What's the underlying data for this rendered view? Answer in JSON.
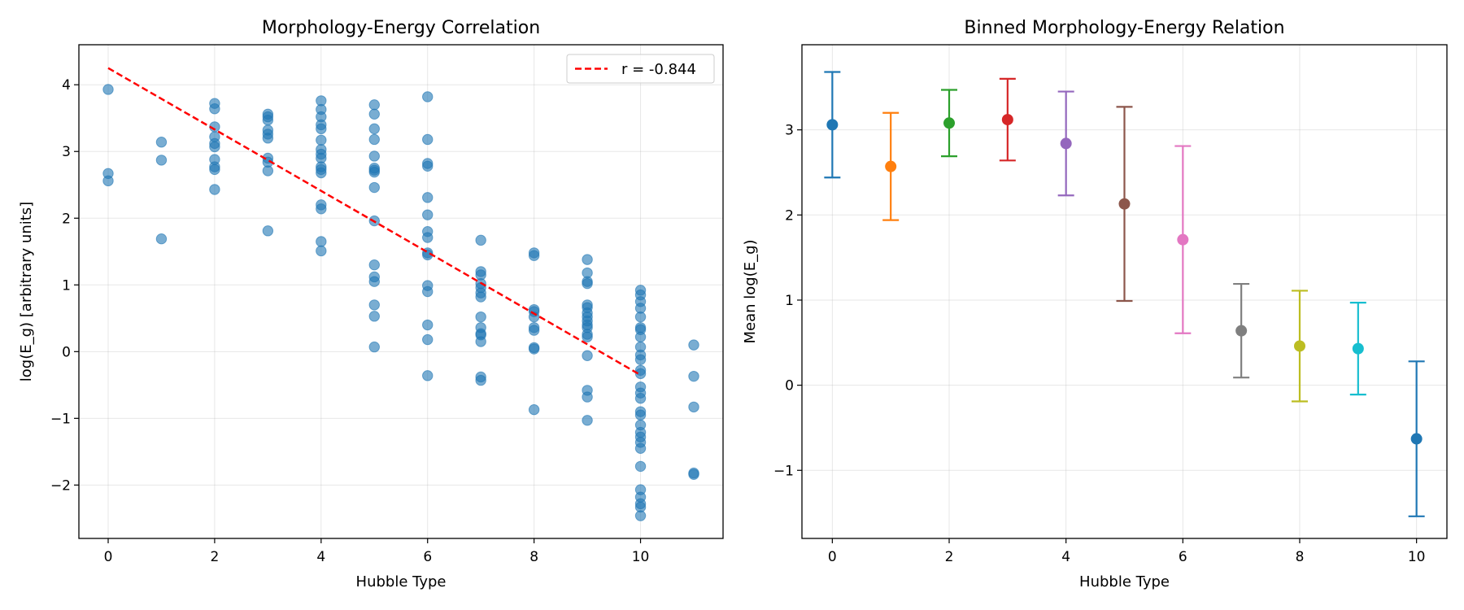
{
  "chart_data": [
    {
      "type": "scatter",
      "title": "Morphology-Energy Correlation",
      "xlabel": "Hubble Type",
      "ylabel": "log(E_g) [arbitrary units]",
      "xlim": [
        -0.55,
        11.55
      ],
      "ylim": [
        -2.8,
        4.6
      ],
      "xticks": [
        0,
        2,
        4,
        6,
        8,
        10
      ],
      "yticks": [
        -2,
        -1,
        0,
        1,
        2,
        3,
        4
      ],
      "xtick_labels": [
        "0",
        "2",
        "4",
        "6",
        "8",
        "10"
      ],
      "ytick_labels": [
        "−2",
        "−1",
        "0",
        "1",
        "2",
        "3",
        "4"
      ],
      "grid": true,
      "legend_position": "top-right",
      "point_color": "#1f77b4",
      "points": [
        {
          "x": 0,
          "y": 3.93
        },
        {
          "x": 0,
          "y": 2.67
        },
        {
          "x": 0,
          "y": 2.56
        },
        {
          "x": 1,
          "y": 3.14
        },
        {
          "x": 1,
          "y": 2.87
        },
        {
          "x": 1,
          "y": 1.69
        },
        {
          "x": 2,
          "y": 3.72
        },
        {
          "x": 2,
          "y": 3.64
        },
        {
          "x": 2,
          "y": 3.37
        },
        {
          "x": 2,
          "y": 3.22
        },
        {
          "x": 2,
          "y": 3.12
        },
        {
          "x": 2,
          "y": 3.07
        },
        {
          "x": 2,
          "y": 2.88
        },
        {
          "x": 2,
          "y": 2.77
        },
        {
          "x": 2,
          "y": 2.73
        },
        {
          "x": 2,
          "y": 2.43
        },
        {
          "x": 3,
          "y": 3.56
        },
        {
          "x": 3,
          "y": 3.52
        },
        {
          "x": 3,
          "y": 3.47
        },
        {
          "x": 3,
          "y": 3.32
        },
        {
          "x": 3,
          "y": 3.26
        },
        {
          "x": 3,
          "y": 3.2
        },
        {
          "x": 3,
          "y": 2.9
        },
        {
          "x": 3,
          "y": 2.84
        },
        {
          "x": 3,
          "y": 2.71
        },
        {
          "x": 3,
          "y": 1.81
        },
        {
          "x": 4,
          "y": 3.76
        },
        {
          "x": 4,
          "y": 3.63
        },
        {
          "x": 4,
          "y": 3.52
        },
        {
          "x": 4,
          "y": 3.4
        },
        {
          "x": 4,
          "y": 3.34
        },
        {
          "x": 4,
          "y": 3.17
        },
        {
          "x": 4,
          "y": 3.03
        },
        {
          "x": 4,
          "y": 2.96
        },
        {
          "x": 4,
          "y": 2.9
        },
        {
          "x": 4,
          "y": 2.77
        },
        {
          "x": 4,
          "y": 2.73
        },
        {
          "x": 4,
          "y": 2.68
        },
        {
          "x": 4,
          "y": 2.2
        },
        {
          "x": 4,
          "y": 2.14
        },
        {
          "x": 4,
          "y": 1.65
        },
        {
          "x": 4,
          "y": 1.51
        },
        {
          "x": 5,
          "y": 3.7
        },
        {
          "x": 5,
          "y": 3.56
        },
        {
          "x": 5,
          "y": 3.34
        },
        {
          "x": 5,
          "y": 3.18
        },
        {
          "x": 5,
          "y": 2.93
        },
        {
          "x": 5,
          "y": 2.75
        },
        {
          "x": 5,
          "y": 2.72
        },
        {
          "x": 5,
          "y": 2.69
        },
        {
          "x": 5,
          "y": 2.46
        },
        {
          "x": 5,
          "y": 1.96
        },
        {
          "x": 5,
          "y": 1.3
        },
        {
          "x": 5,
          "y": 1.12
        },
        {
          "x": 5,
          "y": 1.05
        },
        {
          "x": 5,
          "y": 0.7
        },
        {
          "x": 5,
          "y": 0.53
        },
        {
          "x": 5,
          "y": 0.07
        },
        {
          "x": 6,
          "y": 3.82
        },
        {
          "x": 6,
          "y": 3.18
        },
        {
          "x": 6,
          "y": 2.82
        },
        {
          "x": 6,
          "y": 2.78
        },
        {
          "x": 6,
          "y": 2.31
        },
        {
          "x": 6,
          "y": 2.05
        },
        {
          "x": 6,
          "y": 1.8
        },
        {
          "x": 6,
          "y": 1.71
        },
        {
          "x": 6,
          "y": 1.48
        },
        {
          "x": 6,
          "y": 1.45
        },
        {
          "x": 6,
          "y": 0.99
        },
        {
          "x": 6,
          "y": 0.9
        },
        {
          "x": 6,
          "y": 0.4
        },
        {
          "x": 6,
          "y": 0.18
        },
        {
          "x": 6,
          "y": -0.36
        },
        {
          "x": 7,
          "y": 1.67
        },
        {
          "x": 7,
          "y": 1.2
        },
        {
          "x": 7,
          "y": 1.15
        },
        {
          "x": 7,
          "y": 1.02
        },
        {
          "x": 7,
          "y": 0.96
        },
        {
          "x": 7,
          "y": 0.88
        },
        {
          "x": 7,
          "y": 0.82
        },
        {
          "x": 7,
          "y": 0.52
        },
        {
          "x": 7,
          "y": 0.36
        },
        {
          "x": 7,
          "y": 0.27
        },
        {
          "x": 7,
          "y": 0.25
        },
        {
          "x": 7,
          "y": 0.15
        },
        {
          "x": 7,
          "y": -0.38
        },
        {
          "x": 7,
          "y": -0.43
        },
        {
          "x": 8,
          "y": 1.48
        },
        {
          "x": 8,
          "y": 1.44
        },
        {
          "x": 8,
          "y": 0.63
        },
        {
          "x": 8,
          "y": 0.6
        },
        {
          "x": 8,
          "y": 0.52
        },
        {
          "x": 8,
          "y": 0.36
        },
        {
          "x": 8,
          "y": 0.32
        },
        {
          "x": 8,
          "y": 0.06
        },
        {
          "x": 8,
          "y": 0.04
        },
        {
          "x": 8,
          "y": -0.87
        },
        {
          "x": 9,
          "y": 1.38
        },
        {
          "x": 9,
          "y": 1.18
        },
        {
          "x": 9,
          "y": 1.05
        },
        {
          "x": 9,
          "y": 1.02
        },
        {
          "x": 9,
          "y": 0.7
        },
        {
          "x": 9,
          "y": 0.66
        },
        {
          "x": 9,
          "y": 0.58
        },
        {
          "x": 9,
          "y": 0.52
        },
        {
          "x": 9,
          "y": 0.46
        },
        {
          "x": 9,
          "y": 0.4
        },
        {
          "x": 9,
          "y": 0.36
        },
        {
          "x": 9,
          "y": 0.26
        },
        {
          "x": 9,
          "y": 0.22
        },
        {
          "x": 9,
          "y": -0.06
        },
        {
          "x": 9,
          "y": -0.58
        },
        {
          "x": 9,
          "y": -0.68
        },
        {
          "x": 9,
          "y": -1.03
        },
        {
          "x": 10,
          "y": 0.92
        },
        {
          "x": 10,
          "y": 0.85
        },
        {
          "x": 10,
          "y": 0.75
        },
        {
          "x": 10,
          "y": 0.65
        },
        {
          "x": 10,
          "y": 0.52
        },
        {
          "x": 10,
          "y": 0.36
        },
        {
          "x": 10,
          "y": 0.33
        },
        {
          "x": 10,
          "y": 0.22
        },
        {
          "x": 10,
          "y": 0.07
        },
        {
          "x": 10,
          "y": -0.05
        },
        {
          "x": 10,
          "y": -0.12
        },
        {
          "x": 10,
          "y": -0.28
        },
        {
          "x": 10,
          "y": -0.33
        },
        {
          "x": 10,
          "y": -0.53
        },
        {
          "x": 10,
          "y": -0.62
        },
        {
          "x": 10,
          "y": -0.7
        },
        {
          "x": 10,
          "y": -0.9
        },
        {
          "x": 10,
          "y": -0.95
        },
        {
          "x": 10,
          "y": -1.1
        },
        {
          "x": 10,
          "y": -1.21
        },
        {
          "x": 10,
          "y": -1.28
        },
        {
          "x": 10,
          "y": -1.36
        },
        {
          "x": 10,
          "y": -1.45
        },
        {
          "x": 10,
          "y": -1.72
        },
        {
          "x": 10,
          "y": -2.07
        },
        {
          "x": 10,
          "y": -2.18
        },
        {
          "x": 10,
          "y": -2.28
        },
        {
          "x": 10,
          "y": -2.33
        },
        {
          "x": 10,
          "y": -2.46
        },
        {
          "x": 11,
          "y": 0.1
        },
        {
          "x": 11,
          "y": -0.37
        },
        {
          "x": 11,
          "y": -0.83
        },
        {
          "x": 11,
          "y": -1.82
        },
        {
          "x": 11,
          "y": -1.84
        }
      ],
      "fit_line": {
        "label": "r = -0.844",
        "color": "#ff0000",
        "style": "dashed",
        "x": [
          0,
          10
        ],
        "y": [
          4.25,
          -0.35
        ]
      }
    },
    {
      "type": "errorbar",
      "title": "Binned Morphology-Energy Relation",
      "xlabel": "Hubble Type",
      "ylabel": "Mean log(E_g)",
      "xlim": [
        -0.52,
        10.52
      ],
      "ylim": [
        -1.8,
        4.0
      ],
      "xticks": [
        0,
        2,
        4,
        6,
        8,
        10
      ],
      "yticks": [
        -1,
        0,
        1,
        2,
        3
      ],
      "xtick_labels": [
        "0",
        "2",
        "4",
        "6",
        "8",
        "10"
      ],
      "ytick_labels": [
        "−1",
        "0",
        "1",
        "2",
        "3"
      ],
      "grid": true,
      "points": [
        {
          "x": 0,
          "mean": 3.06,
          "err": 0.62,
          "color": "#1f77b4"
        },
        {
          "x": 1,
          "mean": 2.57,
          "err": 0.63,
          "color": "#ff7f0e"
        },
        {
          "x": 2,
          "mean": 3.08,
          "err": 0.39,
          "color": "#2ca02c"
        },
        {
          "x": 3,
          "mean": 3.12,
          "err": 0.48,
          "color": "#d62728"
        },
        {
          "x": 4,
          "mean": 2.84,
          "err": 0.61,
          "color": "#9467bd"
        },
        {
          "x": 5,
          "mean": 2.13,
          "err": 1.14,
          "color": "#8c564b"
        },
        {
          "x": 6,
          "mean": 1.71,
          "err": 1.1,
          "color": "#e377c2"
        },
        {
          "x": 7,
          "mean": 0.64,
          "err": 0.55,
          "color": "#7f7f7f"
        },
        {
          "x": 8,
          "mean": 0.46,
          "err": 0.65,
          "color": "#bcbd22"
        },
        {
          "x": 9,
          "mean": 0.43,
          "err": 0.54,
          "color": "#17becf"
        },
        {
          "x": 10,
          "mean": -0.63,
          "err": 0.91,
          "color": "#1f77b4"
        }
      ]
    }
  ]
}
